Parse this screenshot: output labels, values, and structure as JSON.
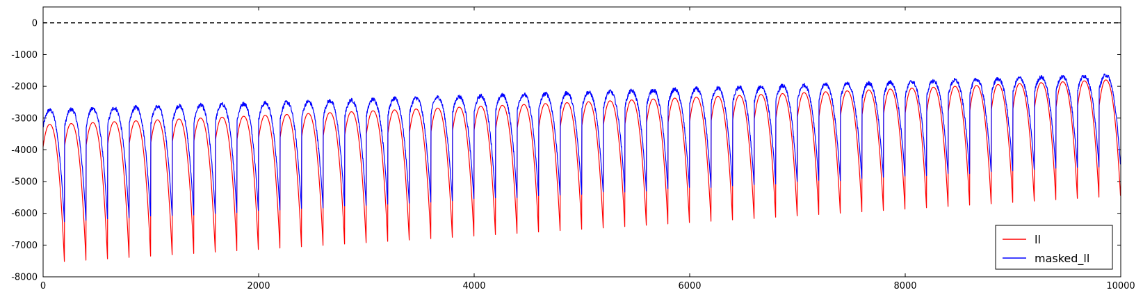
{
  "chart_data": {
    "type": "line",
    "title": "",
    "xlabel": "",
    "ylabel": "",
    "xlim": [
      0,
      10000
    ],
    "ylim": [
      -8000,
      500
    ],
    "x_ticks": [
      0,
      2000,
      4000,
      6000,
      8000,
      10000
    ],
    "y_ticks": [
      0,
      -1000,
      -2000,
      -3000,
      -4000,
      -5000,
      -6000,
      -7000,
      -8000
    ],
    "x_tick_labels": [
      "0",
      "2000",
      "4000",
      "6000",
      "8000",
      "10000"
    ],
    "y_tick_labels": [
      "0",
      "-1000",
      "-2000",
      "-3000",
      "-4000",
      "-5000",
      "-6000",
      "-7000",
      "-8000"
    ],
    "reference_line": {
      "y": 0,
      "style": "dashed",
      "color": "#000000"
    },
    "cycle_period": 200,
    "legend_position": "bottom-right",
    "series": [
      {
        "name": "ll",
        "color": "#ff0000",
        "cycle_start": 0,
        "restart_value": {
          "first": -3900,
          "last": -2600
        },
        "peak_value": {
          "first": -3200,
          "last": -1800
        },
        "peak_position": 0.3,
        "cycle_min": {
          "first": -7700,
          "last": -5600
        }
      },
      {
        "name": "masked_ll",
        "color": "#0000ff",
        "cycle_start": 0,
        "restart_value": {
          "first": -3300,
          "last": -2100
        },
        "peak_value": {
          "first": -2750,
          "last": -1650
        },
        "peak_position": 0.3,
        "cycle_min": {
          "first": -6400,
          "last": -4600
        }
      }
    ]
  }
}
